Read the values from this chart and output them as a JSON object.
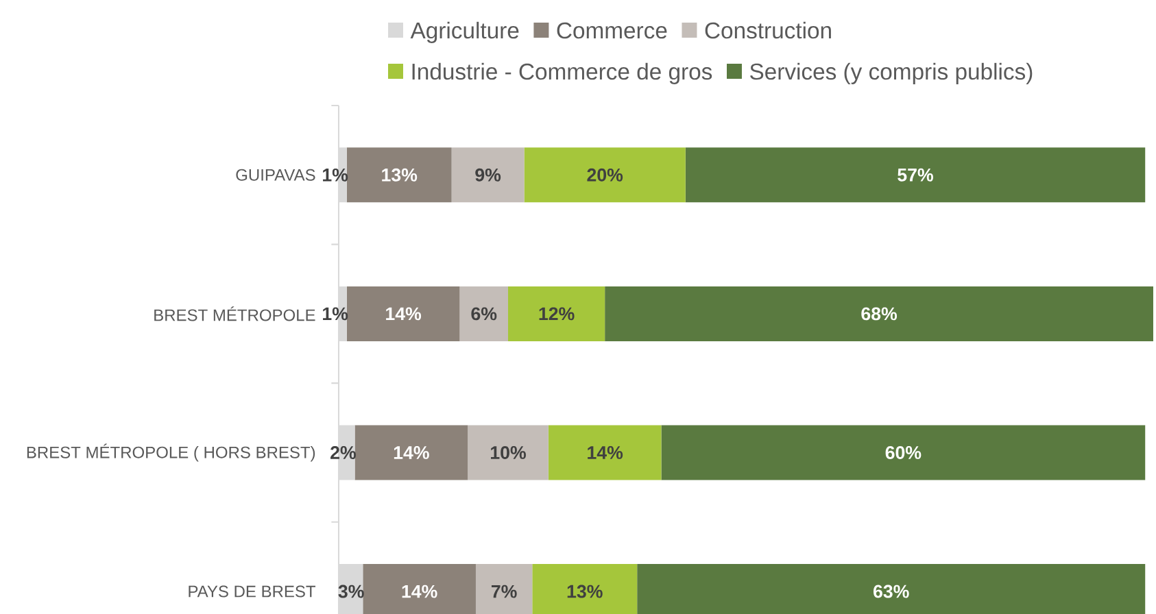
{
  "chart_data": {
    "type": "bar",
    "orientation": "horizontal",
    "stacked": true,
    "categories": [
      "GUIPAVAS",
      "BREST MÉTROPOLE",
      "BREST MÉTROPOLE ( HORS BREST)",
      "PAYS DE BREST"
    ],
    "series": [
      {
        "name": "Agriculture",
        "color": "#d9d9d9",
        "values": [
          1,
          1,
          2,
          3
        ],
        "value_labels": [
          "1%",
          "1%",
          "2%",
          "3%"
        ]
      },
      {
        "name": "Commerce",
        "color": "#8c8279",
        "values": [
          13,
          14,
          14,
          14
        ],
        "value_labels": [
          "13%",
          "14%",
          "14%",
          "14%"
        ]
      },
      {
        "name": "Construction",
        "color": "#c4bdb8",
        "values": [
          9,
          6,
          10,
          7
        ],
        "value_labels": [
          "9%",
          "6%",
          "10%",
          "7%"
        ]
      },
      {
        "name": "Industrie - Commerce de gros",
        "color": "#a5c63b",
        "values": [
          20,
          12,
          14,
          13
        ],
        "value_labels": [
          "20%",
          "12%",
          "14%",
          "13%"
        ]
      },
      {
        "name": "Services (y compris publics)",
        "color": "#5a7a40",
        "values": [
          57,
          68,
          60,
          63
        ],
        "value_labels": [
          "57%",
          "68%",
          "60%",
          "63%"
        ]
      }
    ],
    "xlim": [
      0,
      101
    ],
    "tick_labels": "y",
    "grid": false,
    "legend": "top"
  }
}
